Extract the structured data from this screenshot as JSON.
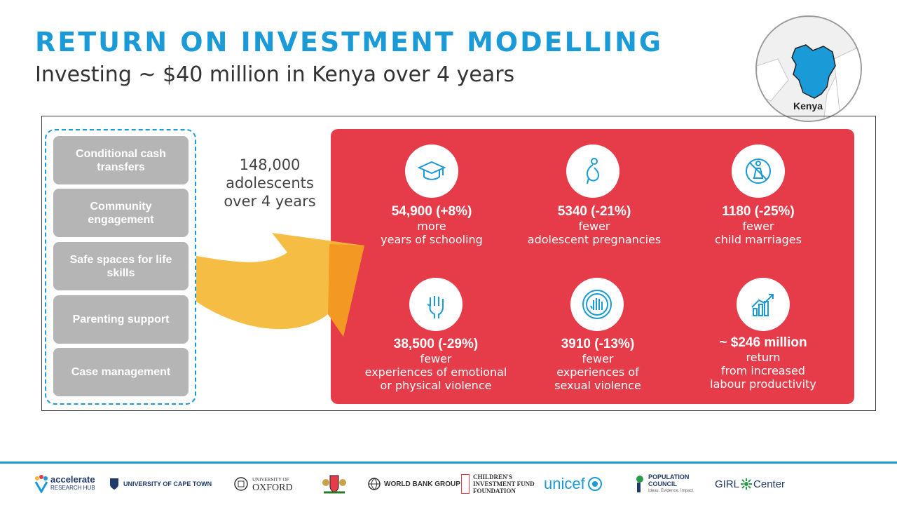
{
  "header": {
    "title": "RETURN ON INVESTMENT MODELLING",
    "subtitle": "Investing ~ $40 million in Kenya over 4 years"
  },
  "map": {
    "label": "Kenya",
    "highlight_color": "#1a9ad6"
  },
  "interventions": [
    "Conditional cash transfers",
    "Community engagement",
    "Safe spaces for life skills",
    "Parenting support",
    "Case management"
  ],
  "reach": "148,000 adolescents over 4 years",
  "outcomes": [
    {
      "icon": "graduation-cap-icon",
      "value": "54,900 (+8%)",
      "desc": "more\nyears of schooling"
    },
    {
      "icon": "pregnancy-icon",
      "value": "5340 (-21%)",
      "desc": "fewer\nadolescent pregnancies"
    },
    {
      "icon": "no-child-marriage-icon",
      "value": "1180 (-25%)",
      "desc": "fewer\nchild marriages"
    },
    {
      "icon": "raised-fist-icon",
      "value": "38,500 (-29%)",
      "desc": "fewer\nexperiences of emotional\nor physical violence"
    },
    {
      "icon": "stop-hand-icon",
      "value": "3910 (-13%)",
      "desc": "fewer\nexperiences of\nsexual violence"
    },
    {
      "icon": "growth-chart-icon",
      "value": "~ $246 million",
      "desc": "return\nfrom increased\nlabour productivity"
    }
  ],
  "footer_logos": [
    "accelerate",
    "RESEARCH HUB",
    "UNIVERSITY OF CAPE TOWN",
    "UNIVERSITY OF",
    "OXFORD",
    "WORLD BANK GROUP",
    "CHILDREN'S",
    "INVESTMENT FUND",
    "FOUNDATION",
    "unicef",
    "POPULATION",
    "COUNCIL",
    "Ideas. Evidence. Impact.",
    "GIRL",
    "Center"
  ],
  "colors": {
    "title_blue": "#1a9ad6",
    "panel_red": "#e63c4a",
    "arrow_yellow": "#f5b93a",
    "intervention_gray": "#b5b5b5"
  }
}
